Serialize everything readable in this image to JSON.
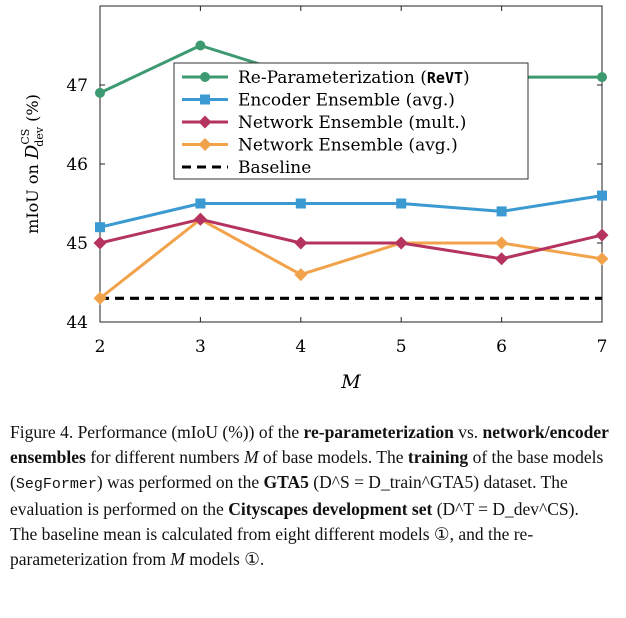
{
  "chart_data": {
    "type": "line",
    "x": [
      2,
      3,
      4,
      5,
      6,
      7
    ],
    "xlabel": "M",
    "ylabel": "mIoU on D_dev^CS (%)",
    "ylabel_parts": {
      "prefix": "mIoU on ",
      "D": "D",
      "sup": "CS",
      "sub": "dev",
      "suffix": " (%)"
    },
    "ylim": [
      44,
      48
    ],
    "yticks": [
      44,
      45,
      46,
      47
    ],
    "xticks": [
      "2",
      "3",
      "4",
      "5",
      "6",
      "7"
    ],
    "grid": false,
    "legend_position": "top-right",
    "series": [
      {
        "name": "Re-Parameterization (ReVT)",
        "name_main": "Re-Parameterization (",
        "name_code": "ReVT",
        "name_end": ")",
        "color": "#3d9970",
        "marker": "circle",
        "dash": false,
        "values": [
          46.9,
          47.5,
          47.1,
          47.1,
          47.1,
          47.1
        ]
      },
      {
        "name": "Encoder Ensemble (avg.)",
        "color": "#3a9ad1",
        "marker": "square",
        "dash": false,
        "values": [
          45.2,
          45.5,
          45.5,
          45.5,
          45.4,
          45.6
        ]
      },
      {
        "name": "Network Ensemble (mult.)",
        "color": "#b5335f",
        "marker": "diamond",
        "dash": false,
        "values": [
          45.0,
          45.3,
          45.0,
          45.0,
          44.8,
          45.1
        ]
      },
      {
        "name": "Network Ensemble (avg.)",
        "color": "#f2a24a",
        "marker": "diamond",
        "dash": false,
        "values": [
          44.3,
          45.3,
          44.6,
          45.0,
          45.0,
          44.8
        ]
      },
      {
        "name": "Baseline",
        "color": "#000000",
        "marker": "none",
        "dash": true,
        "values": [
          44.3,
          44.3,
          44.3,
          44.3,
          44.3,
          44.3
        ]
      }
    ]
  },
  "caption": {
    "fig": "Figure 4.",
    "t1": "Performance (mIoU (%)) of the",
    "b1": "re-parameterization",
    "t2": "vs.",
    "b2": "network/encoder ensembles",
    "t3": "for different numbers",
    "m1": "M",
    "t4": "of base models. The",
    "b3": "training",
    "t5": "of the base models (",
    "code": "SegFormer",
    "t6": ") was performed on the",
    "b4": "GTA5",
    "t7": "(",
    "ds_train": "D^S = D_train^GTA5",
    "t8": ") dataset. The evaluation is performed on the",
    "b5": "Cityscapes development set",
    "t9": "(",
    "ds_dev": "D^T = D_dev^CS",
    "t10": "). The baseline mean is calculated from eight different models ①, and the re-parameterization from",
    "m2": "M",
    "t11": "models ①."
  }
}
